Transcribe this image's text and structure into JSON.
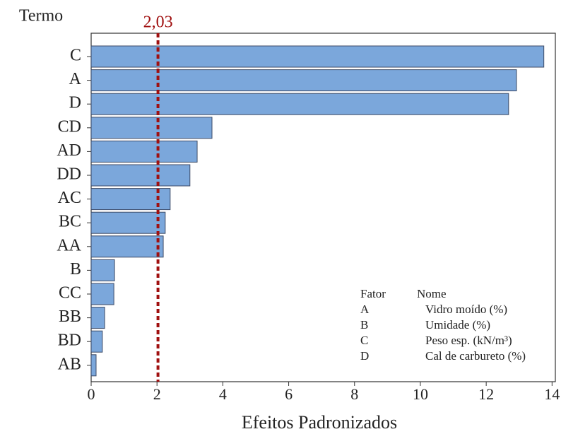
{
  "chart_data": {
    "type": "barh",
    "ylabel": "Termo",
    "xlabel": "Efeitos Padronizados",
    "categories": [
      "C",
      "A",
      "D",
      "CD",
      "AD",
      "DD",
      "AC",
      "BC",
      "AA",
      "B",
      "CC",
      "BB",
      "BD",
      "AB"
    ],
    "values": [
      13.75,
      12.92,
      12.68,
      3.67,
      3.22,
      3.0,
      2.4,
      2.25,
      2.19,
      0.71,
      0.69,
      0.41,
      0.34,
      0.15
    ],
    "color": "#7ba7db",
    "xlim": [
      0,
      14.1
    ],
    "xticks": [
      0,
      2,
      4,
      6,
      8,
      10,
      12,
      14
    ],
    "reference_line": {
      "value": 2.03,
      "label": "2,03",
      "color": "#a01010"
    },
    "factor_table": {
      "headers": [
        "Fator",
        "Nome"
      ],
      "rows": [
        [
          "A",
          "Vidro moído (%)"
        ],
        [
          "B",
          "Umidade (%)"
        ],
        [
          "C",
          "Peso esp. (kN/m³)"
        ],
        [
          "D",
          "Cal de carbureto (%)"
        ]
      ]
    }
  }
}
